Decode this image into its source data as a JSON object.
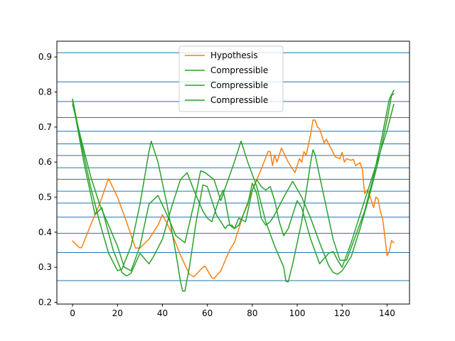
{
  "chart_data": {
    "type": "line",
    "xlim": [
      -7,
      150
    ],
    "ylim": [
      0.195,
      0.945
    ],
    "xticks": [
      0,
      20,
      40,
      60,
      80,
      100,
      120,
      140
    ],
    "yticks": [
      0.2,
      0.3,
      0.4,
      0.5,
      0.6,
      0.7,
      0.8,
      0.9
    ],
    "hlines": {
      "color": "#1f77b4",
      "values": [
        0.912,
        0.829,
        0.773,
        0.727,
        0.688,
        0.652,
        0.619,
        0.584,
        0.551,
        0.517,
        0.483,
        0.443,
        0.397,
        0.342,
        0.262
      ]
    },
    "legend": {
      "placement": "upper center"
    },
    "series": [
      {
        "name": "Hypothesis",
        "color": "#ff7f0e",
        "points": [
          [
            0,
            0.375
          ],
          [
            3,
            0.356
          ],
          [
            4,
            0.356
          ],
          [
            8,
            0.42
          ],
          [
            12,
            0.48
          ],
          [
            16,
            0.553
          ],
          [
            20,
            0.5
          ],
          [
            24,
            0.43
          ],
          [
            28,
            0.355
          ],
          [
            30,
            0.355
          ],
          [
            34,
            0.38
          ],
          [
            38,
            0.42
          ],
          [
            40,
            0.45
          ],
          [
            44,
            0.4
          ],
          [
            48,
            0.335
          ],
          [
            52,
            0.28
          ],
          [
            54,
            0.273
          ],
          [
            58,
            0.3
          ],
          [
            59,
            0.303
          ],
          [
            62,
            0.27
          ],
          [
            63,
            0.268
          ],
          [
            66,
            0.29
          ],
          [
            70,
            0.35
          ],
          [
            72,
            0.37
          ],
          [
            76,
            0.45
          ],
          [
            80,
            0.52
          ],
          [
            84,
            0.58
          ],
          [
            87,
            0.63
          ],
          [
            88,
            0.63
          ],
          [
            89,
            0.59
          ],
          [
            90,
            0.62
          ],
          [
            91,
            0.6
          ],
          [
            93,
            0.64
          ],
          [
            96,
            0.6
          ],
          [
            98,
            0.58
          ],
          [
            99,
            0.57
          ],
          [
            101,
            0.61
          ],
          [
            102,
            0.6
          ],
          [
            103,
            0.63
          ],
          [
            104,
            0.62
          ],
          [
            106,
            0.68
          ],
          [
            107,
            0.72
          ],
          [
            108,
            0.72
          ],
          [
            109,
            0.7
          ],
          [
            110,
            0.695
          ],
          [
            112,
            0.655
          ],
          [
            113,
            0.665
          ],
          [
            115,
            0.64
          ],
          [
            117,
            0.615
          ],
          [
            119,
            0.61
          ],
          [
            120,
            0.628
          ],
          [
            121,
            0.6
          ],
          [
            122,
            0.61
          ],
          [
            124,
            0.605
          ],
          [
            125,
            0.608
          ],
          [
            126,
            0.59
          ],
          [
            128,
            0.598
          ],
          [
            129,
            0.58
          ],
          [
            130,
            0.51
          ],
          [
            131,
            0.52
          ],
          [
            132,
            0.51
          ],
          [
            134,
            0.47
          ],
          [
            135,
            0.5
          ],
          [
            136,
            0.495
          ],
          [
            137,
            0.46
          ],
          [
            138,
            0.44
          ],
          [
            139,
            0.39
          ],
          [
            140,
            0.333
          ],
          [
            141,
            0.345
          ],
          [
            142,
            0.376
          ],
          [
            143,
            0.37
          ]
        ]
      },
      {
        "name": "Compressible",
        "color": "#2ca02c",
        "points": [
          [
            0,
            0.775
          ],
          [
            5,
            0.6
          ],
          [
            10,
            0.45
          ],
          [
            13,
            0.47
          ],
          [
            18,
            0.35
          ],
          [
            22,
            0.285
          ],
          [
            24,
            0.275
          ],
          [
            26,
            0.283
          ],
          [
            30,
            0.34
          ],
          [
            34,
            0.31
          ],
          [
            36,
            0.33
          ],
          [
            40,
            0.38
          ],
          [
            44,
            0.47
          ],
          [
            48,
            0.55
          ],
          [
            51,
            0.57
          ],
          [
            54,
            0.52
          ],
          [
            58,
            0.46
          ],
          [
            60,
            0.44
          ],
          [
            62,
            0.43
          ],
          [
            65,
            0.49
          ],
          [
            67,
            0.52
          ],
          [
            68,
            0.49
          ],
          [
            70,
            0.42
          ],
          [
            72,
            0.41
          ],
          [
            74,
            0.44
          ],
          [
            77,
            0.43
          ],
          [
            80,
            0.52
          ],
          [
            82,
            0.55
          ],
          [
            84,
            0.53
          ],
          [
            86,
            0.52
          ],
          [
            88,
            0.53
          ],
          [
            90,
            0.49
          ],
          [
            92,
            0.43
          ],
          [
            94,
            0.39
          ],
          [
            96,
            0.41
          ],
          [
            98,
            0.45
          ],
          [
            100,
            0.49
          ],
          [
            102,
            0.47
          ],
          [
            106,
            0.38
          ],
          [
            110,
            0.31
          ],
          [
            114,
            0.34
          ],
          [
            116,
            0.345
          ],
          [
            118,
            0.32
          ],
          [
            120,
            0.3
          ],
          [
            124,
            0.37
          ],
          [
            128,
            0.45
          ],
          [
            132,
            0.53
          ],
          [
            136,
            0.61
          ],
          [
            140,
            0.69
          ],
          [
            143,
            0.765
          ]
        ]
      },
      {
        "name": "Compressible",
        "color": "#2ca02c",
        "points": [
          [
            0,
            0.78
          ],
          [
            4,
            0.65
          ],
          [
            8,
            0.53
          ],
          [
            12,
            0.43
          ],
          [
            16,
            0.34
          ],
          [
            20,
            0.29
          ],
          [
            22,
            0.295
          ],
          [
            26,
            0.36
          ],
          [
            30,
            0.48
          ],
          [
            34,
            0.63
          ],
          [
            35,
            0.66
          ],
          [
            38,
            0.6
          ],
          [
            42,
            0.48
          ],
          [
            46,
            0.34
          ],
          [
            48,
            0.26
          ],
          [
            49,
            0.232
          ],
          [
            50,
            0.232
          ],
          [
            52,
            0.3
          ],
          [
            55,
            0.43
          ],
          [
            58,
            0.535
          ],
          [
            60,
            0.53
          ],
          [
            64,
            0.45
          ],
          [
            68,
            0.41
          ],
          [
            69,
            0.42
          ],
          [
            71,
            0.42
          ],
          [
            72,
            0.41
          ],
          [
            74,
            0.42
          ],
          [
            76,
            0.45
          ],
          [
            78,
            0.48
          ],
          [
            80,
            0.54
          ],
          [
            82,
            0.51
          ],
          [
            84,
            0.44
          ],
          [
            86,
            0.42
          ],
          [
            88,
            0.43
          ],
          [
            90,
            0.45
          ],
          [
            94,
            0.5
          ],
          [
            98,
            0.545
          ],
          [
            102,
            0.5
          ],
          [
            106,
            0.44
          ],
          [
            110,
            0.37
          ],
          [
            114,
            0.305
          ],
          [
            116,
            0.285
          ],
          [
            118,
            0.28
          ],
          [
            120,
            0.29
          ],
          [
            124,
            0.33
          ],
          [
            128,
            0.41
          ],
          [
            132,
            0.5
          ],
          [
            136,
            0.6
          ],
          [
            140,
            0.72
          ],
          [
            142,
            0.79
          ],
          [
            143,
            0.795
          ]
        ]
      },
      {
        "name": "Compressible",
        "color": "#2ca02c",
        "points": [
          [
            0,
            0.765
          ],
          [
            4,
            0.66
          ],
          [
            8,
            0.56
          ],
          [
            12,
            0.48
          ],
          [
            16,
            0.42
          ],
          [
            20,
            0.36
          ],
          [
            23,
            0.3
          ],
          [
            26,
            0.29
          ],
          [
            30,
            0.36
          ],
          [
            34,
            0.48
          ],
          [
            38,
            0.505
          ],
          [
            42,
            0.45
          ],
          [
            46,
            0.39
          ],
          [
            50,
            0.37
          ],
          [
            54,
            0.48
          ],
          [
            57,
            0.575
          ],
          [
            59,
            0.57
          ],
          [
            61,
            0.56
          ],
          [
            63,
            0.55
          ],
          [
            66,
            0.49
          ],
          [
            69,
            0.545
          ],
          [
            72,
            0.6
          ],
          [
            74,
            0.64
          ],
          [
            75,
            0.66
          ],
          [
            78,
            0.6
          ],
          [
            82,
            0.53
          ],
          [
            86,
            0.43
          ],
          [
            90,
            0.36
          ],
          [
            94,
            0.3
          ],
          [
            95,
            0.26
          ],
          [
            96,
            0.258
          ],
          [
            98,
            0.31
          ],
          [
            102,
            0.43
          ],
          [
            106,
            0.6
          ],
          [
            107,
            0.635
          ],
          [
            108,
            0.62
          ],
          [
            112,
            0.5
          ],
          [
            116,
            0.38
          ],
          [
            119,
            0.32
          ],
          [
            122,
            0.32
          ],
          [
            126,
            0.39
          ],
          [
            130,
            0.46
          ],
          [
            134,
            0.56
          ],
          [
            138,
            0.68
          ],
          [
            141,
            0.78
          ],
          [
            143,
            0.805
          ]
        ]
      }
    ]
  }
}
